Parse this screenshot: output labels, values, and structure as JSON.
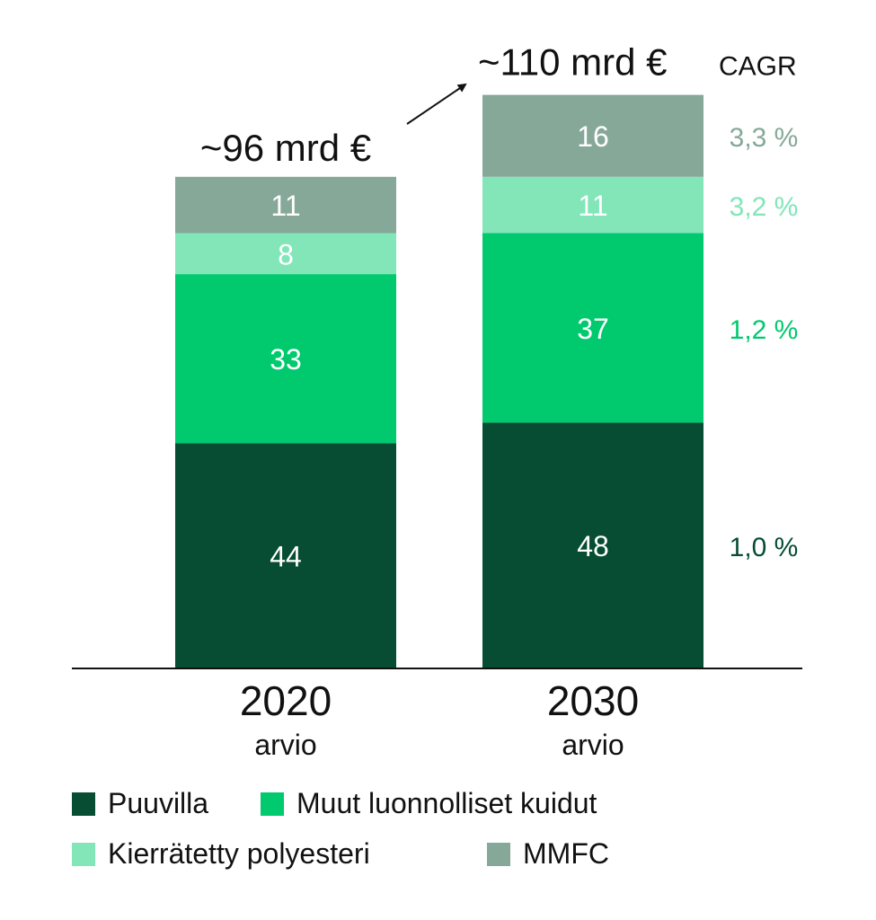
{
  "chart_data": {
    "type": "bar",
    "stacked": true,
    "categories": [
      "2020",
      "2030"
    ],
    "category_sublabels": [
      "arvio",
      "arvio"
    ],
    "totals": [
      "~96 mrd €",
      "~110 mrd €"
    ],
    "cagr_label": "CAGR",
    "series": [
      {
        "name": "Puuvilla",
        "values": [
          44,
          48
        ],
        "cagr": "1,0 %",
        "color": "#064d33"
      },
      {
        "name": "Muut luonnolliset kuidut",
        "values": [
          33,
          37
        ],
        "cagr": "1,2 %",
        "color": "#00c96e"
      },
      {
        "name": "Kierrätetty polyesteri",
        "values": [
          8,
          11
        ],
        "cagr": "3,2 %",
        "color": "#82e6b9"
      },
      {
        "name": "MMFC",
        "values": [
          11,
          16
        ],
        "cagr": "3,3 %",
        "color": "#86a899"
      }
    ],
    "ylim": [
      0,
      112
    ],
    "grid": false,
    "legend_position": "bottom"
  },
  "colors": {
    "label_text": "#ffffff",
    "axis": "#111111",
    "text": "#111111"
  }
}
